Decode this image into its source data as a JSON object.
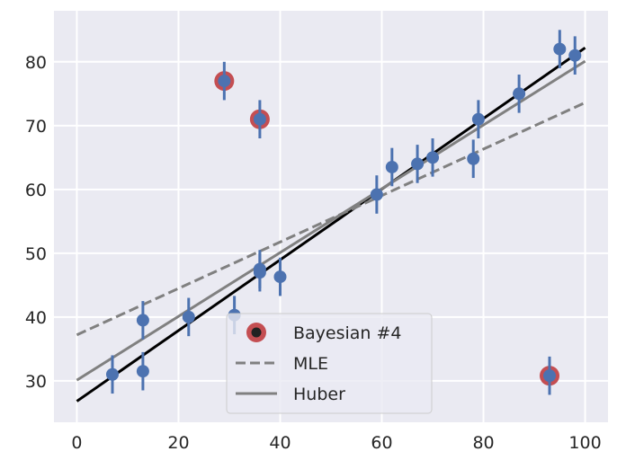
{
  "chart_data": {
    "type": "scatter",
    "xlim": [
      -4.5,
      104.5
    ],
    "ylim": [
      23.5,
      88
    ],
    "xticks": [
      0,
      20,
      40,
      60,
      80,
      100
    ],
    "yticks": [
      30,
      40,
      50,
      60,
      70,
      80
    ],
    "grid": true,
    "background": "#eaeaf2",
    "points": [
      {
        "x": 7,
        "y": 31,
        "err": 3
      },
      {
        "x": 13,
        "y": 39.5,
        "err": 3
      },
      {
        "x": 13,
        "y": 31.5,
        "err": 3
      },
      {
        "x": 22,
        "y": 40,
        "err": 3
      },
      {
        "x": 29,
        "y": 77,
        "err": 3
      },
      {
        "x": 31,
        "y": 40.3,
        "err": 3
      },
      {
        "x": 36,
        "y": 71,
        "err": 3
      },
      {
        "x": 36,
        "y": 47.5,
        "err": 3
      },
      {
        "x": 36,
        "y": 47,
        "err": 3
      },
      {
        "x": 40,
        "y": 46.3,
        "err": 3
      },
      {
        "x": 59,
        "y": 59.2,
        "err": 3
      },
      {
        "x": 62,
        "y": 63.5,
        "err": 3
      },
      {
        "x": 67,
        "y": 64,
        "err": 3
      },
      {
        "x": 70,
        "y": 65,
        "err": 3
      },
      {
        "x": 78,
        "y": 64.8,
        "err": 3
      },
      {
        "x": 79,
        "y": 71,
        "err": 3
      },
      {
        "x": 87,
        "y": 75,
        "err": 3
      },
      {
        "x": 93,
        "y": 30.8,
        "err": 3
      },
      {
        "x": 95,
        "y": 82,
        "err": 3
      },
      {
        "x": 98,
        "y": 81,
        "err": 3
      }
    ],
    "outliers": [
      {
        "x": 29,
        "y": 77
      },
      {
        "x": 36,
        "y": 71
      },
      {
        "x": 93,
        "y": 30.8
      }
    ],
    "lines": [
      {
        "name": "Bayesian #4",
        "x": [
          0,
          100
        ],
        "y": [
          26.8,
          82.2
        ],
        "color": "#000000",
        "dash": "solid"
      },
      {
        "name": "MLE",
        "x": [
          0,
          100
        ],
        "y": [
          37.2,
          73.6
        ],
        "color": "#808080",
        "dash": "dashed"
      },
      {
        "name": "Huber",
        "x": [
          0,
          100
        ],
        "y": [
          30.1,
          80.1
        ],
        "color": "#808080",
        "dash": "solid"
      }
    ],
    "colors": {
      "points": "#4c72b0",
      "outlier": "#c44e52",
      "fit": "#000000",
      "mle": "#808080",
      "huber": "#808080"
    },
    "legend": {
      "position": "lower-center",
      "entries": [
        "Bayesian #4",
        "MLE",
        "Huber"
      ]
    }
  }
}
